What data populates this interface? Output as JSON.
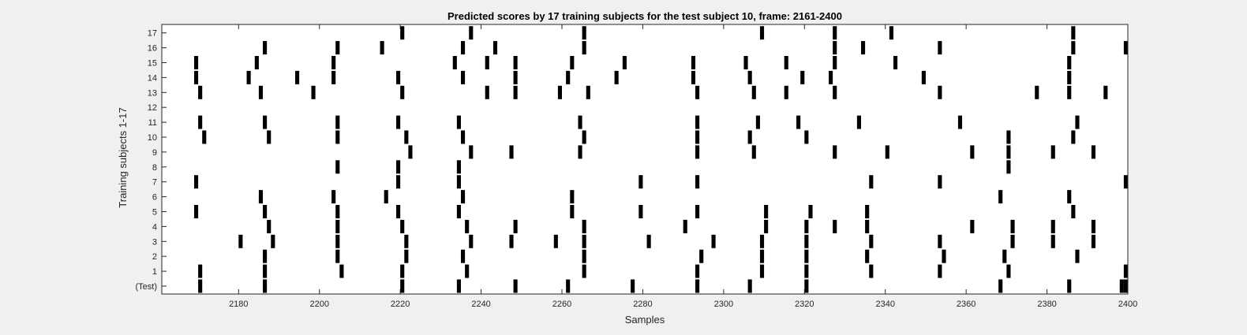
{
  "chart_data": {
    "type": "raster",
    "title": "Predicted scores by 17 training subjects for the test subject 10, frame: 2161-2400",
    "xlabel": "Samples",
    "ylabel": "Training subjects 1-17",
    "xlim": [
      2161,
      2400
    ],
    "xticks": [
      2180,
      2200,
      2220,
      2240,
      2260,
      2280,
      2300,
      2320,
      2340,
      2360,
      2380,
      2400
    ],
    "rows": [
      {
        "label": "(Test)",
        "events": [
          2170.5,
          2186.5,
          2220.5,
          2234.5,
          2248.5,
          2261.5,
          2277.5,
          2293.5,
          2306.5,
          2320.5,
          2368.5,
          2385.5,
          2398.5,
          2399.5
        ]
      },
      {
        "label": "1",
        "events": [
          2170.5,
          2186.5,
          2205.5,
          2220.5,
          2236.5,
          2265.5,
          2293.5,
          2309.5,
          2320.5,
          2336.5,
          2353.5,
          2370.5,
          2399.5
        ]
      },
      {
        "label": "2",
        "events": [
          2186.5,
          2204.5,
          2221.5,
          2235.5,
          2265.5,
          2294.5,
          2309.5,
          2320.5,
          2335.5,
          2354.5,
          2369.5,
          2387.5
        ]
      },
      {
        "label": "3",
        "events": [
          2180.5,
          2188.5,
          2204.5,
          2221.5,
          2237.5,
          2247.5,
          2258.5,
          2265.5,
          2281.5,
          2297.5,
          2309.5,
          2320.5,
          2336.5,
          2353.5,
          2371.5,
          2381.5,
          2391.5
        ]
      },
      {
        "label": "4",
        "events": [
          2187.5,
          2204.5,
          2220.5,
          2236.5,
          2248.5,
          2265.5,
          2290.5,
          2310.5,
          2320.5,
          2327.5,
          2335.5,
          2361.5,
          2371.5,
          2381.5,
          2391.5
        ]
      },
      {
        "label": "5",
        "events": [
          2169.5,
          2186.5,
          2204.5,
          2219.5,
          2234.5,
          2262.5,
          2279.5,
          2293.5,
          2310.5,
          2321.5,
          2335.5,
          2386.5
        ]
      },
      {
        "label": "6",
        "events": [
          2185.5,
          2203.5,
          2216.5,
          2235.5,
          2262.5,
          2368.5,
          2385.5
        ]
      },
      {
        "label": "7",
        "events": [
          2169.5,
          2219.5,
          2234.5,
          2279.5,
          2293.5,
          2336.5,
          2353.5,
          2399.5
        ]
      },
      {
        "label": "8",
        "events": [
          2204.5,
          2219.5,
          2234.5,
          2370.5
        ]
      },
      {
        "label": "9",
        "events": [
          2222.5,
          2237.5,
          2247.5,
          2264.5,
          2293.5,
          2307.5,
          2327.5,
          2340.5,
          2361.5,
          2370.5,
          2381.5,
          2391.5
        ]
      },
      {
        "label": "10",
        "events": [
          2171.5,
          2187.5,
          2204.5,
          2221.5,
          2235.5,
          2265.5,
          2293.5,
          2306.5,
          2320.5,
          2370.5,
          2386.5
        ]
      },
      {
        "label": "11",
        "events": [
          2170.5,
          2186.5,
          2204.5,
          2219.5,
          2234.5,
          2264.5,
          2293.5,
          2308.5,
          2318.5,
          2333.5,
          2358.5,
          2387.5
        ]
      },
      {
        "label": "12",
        "events": []
      },
      {
        "label": "13",
        "events": [
          2170.5,
          2185.5,
          2198.5,
          2220.5,
          2241.5,
          2248.5,
          2259.5,
          2266.5,
          2293.5,
          2307.5,
          2315.5,
          2327.5,
          2353.5,
          2377.5,
          2385.5,
          2394.5
        ]
      },
      {
        "label": "14",
        "events": [
          2169.5,
          2182.5,
          2194.5,
          2203.5,
          2219.5,
          2235.5,
          2248.5,
          2261.5,
          2273.5,
          2292.5,
          2306.5,
          2319.5,
          2326.5,
          2349.5,
          2385.5
        ]
      },
      {
        "label": "15",
        "events": [
          2169.5,
          2184.5,
          2203.5,
          2233.5,
          2241.5,
          2248.5,
          2262.5,
          2275.5,
          2292.5,
          2305.5,
          2315.5,
          2327.5,
          2342.5,
          2385.5
        ]
      },
      {
        "label": "16",
        "events": [
          2186.5,
          2204.5,
          2215.5,
          2235.5,
          2243.5,
          2265.5,
          2327.5,
          2334.5,
          2353.5,
          2386.5,
          2399.5
        ]
      },
      {
        "label": "17",
        "events": [
          2220.5,
          2237.5,
          2265.5,
          2309.5,
          2327.5,
          2341.5,
          2386.5
        ]
      }
    ]
  }
}
